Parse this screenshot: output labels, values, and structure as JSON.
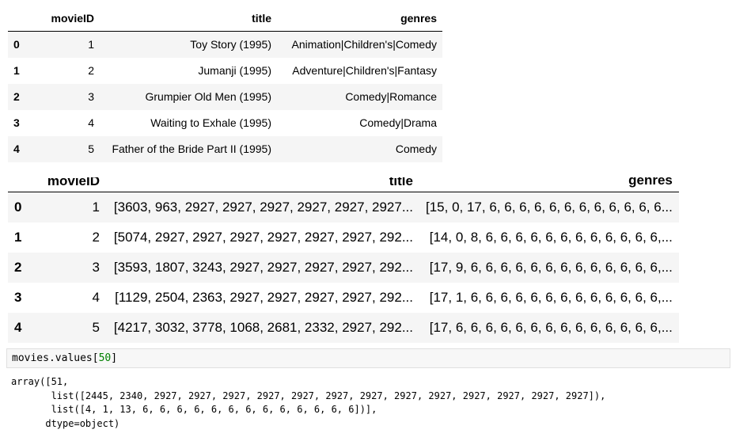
{
  "table1": {
    "columns": [
      "movieID",
      "title",
      "genres"
    ],
    "rows": [
      {
        "index": "0",
        "movieID": "1",
        "title": "Toy Story (1995)",
        "genres": "Animation|Children's|Comedy"
      },
      {
        "index": "1",
        "movieID": "2",
        "title": "Jumanji (1995)",
        "genres": "Adventure|Children's|Fantasy"
      },
      {
        "index": "2",
        "movieID": "3",
        "title": "Grumpier Old Men (1995)",
        "genres": "Comedy|Romance"
      },
      {
        "index": "3",
        "movieID": "4",
        "title": "Waiting to Exhale (1995)",
        "genres": "Comedy|Drama"
      },
      {
        "index": "4",
        "movieID": "5",
        "title": "Father of the Bride Part II (1995)",
        "genres": "Comedy"
      }
    ]
  },
  "table2": {
    "columns": [
      "movieID",
      "title",
      "genres"
    ],
    "rows": [
      {
        "index": "0",
        "movieID": "1",
        "title": "[3603, 963, 2927, 2927, 2927, 2927, 2927, 2927...",
        "genres": "[15, 0, 17, 6, 6, 6, 6, 6, 6, 6, 6, 6, 6, 6, 6..."
      },
      {
        "index": "1",
        "movieID": "2",
        "title": "[5074, 2927, 2927, 2927, 2927, 2927, 2927, 292...",
        "genres": "[14, 0, 8, 6, 6, 6, 6, 6, 6, 6, 6, 6, 6, 6, 6,..."
      },
      {
        "index": "2",
        "movieID": "3",
        "title": "[3593, 1807, 3243, 2927, 2927, 2927, 2927, 292...",
        "genres": "[17, 9, 6, 6, 6, 6, 6, 6, 6, 6, 6, 6, 6, 6, 6,..."
      },
      {
        "index": "3",
        "movieID": "4",
        "title": "[1129, 2504, 2363, 2927, 2927, 2927, 2927, 292...",
        "genres": "[17, 1, 6, 6, 6, 6, 6, 6, 6, 6, 6, 6, 6, 6, 6,..."
      },
      {
        "index": "4",
        "movieID": "5",
        "title": "[4217, 3032, 3778, 1068, 2681, 2332, 2927, 292...",
        "genres": "[17, 6, 6, 6, 6, 6, 6, 6, 6, 6, 6, 6, 6, 6, 6,..."
      }
    ]
  },
  "code": {
    "prefix": "movies.values[",
    "number": "50",
    "suffix": "]"
  },
  "output": {
    "lines": [
      "array([51,",
      "       list([2445, 2340, 2927, 2927, 2927, 2927, 2927, 2927, 2927, 2927, 2927, 2927, 2927, 2927, 2927]),",
      "       list([4, 1, 13, 6, 6, 6, 6, 6, 6, 6, 6, 6, 6, 6, 6, 6])],",
      "      dtype=object)"
    ]
  }
}
